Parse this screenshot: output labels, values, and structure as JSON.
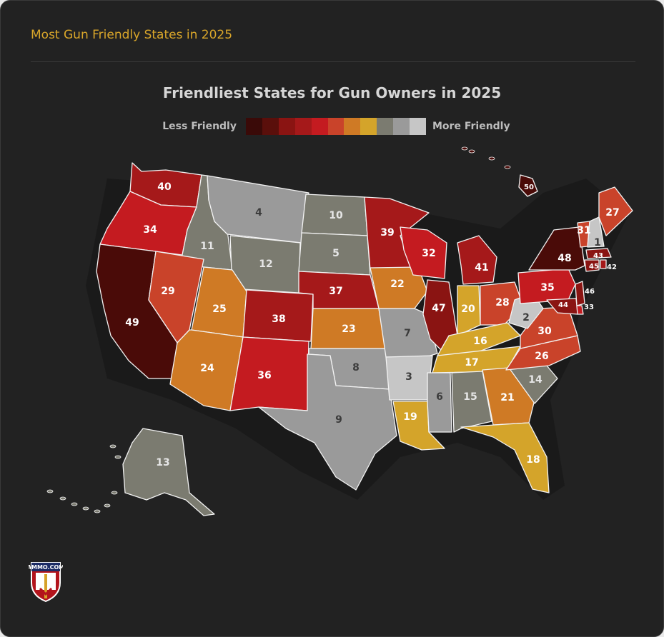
{
  "header": {
    "title": "Most Gun Friendly States in 2025"
  },
  "map": {
    "title": "Friendliest States for Gun Owners in 2025",
    "legend": {
      "less_label": "Less Friendly",
      "more_label": "More Friendly",
      "scale_colors": [
        "#3a0a08",
        "#5a0f0b",
        "#8a1412",
        "#a5191a",
        "#c41b20",
        "#c9432a",
        "#cf7a25",
        "#d4a42a",
        "#7b7b70",
        "#9a9a9a",
        "#c6c6c6"
      ]
    },
    "states": [
      {
        "abbr": "WA",
        "rank": 40,
        "color": "#a5191a"
      },
      {
        "abbr": "OR",
        "rank": 34,
        "color": "#c41b20"
      },
      {
        "abbr": "CA",
        "rank": 49,
        "color": "#4a0b08"
      },
      {
        "abbr": "ID",
        "rank": 11,
        "color": "#7b7b70"
      },
      {
        "abbr": "NV",
        "rank": 29,
        "color": "#c9432a"
      },
      {
        "abbr": "MT",
        "rank": 4,
        "color": "#9a9a9a"
      },
      {
        "abbr": "WY",
        "rank": 12,
        "color": "#7b7b70"
      },
      {
        "abbr": "UT",
        "rank": 25,
        "color": "#cf7a25"
      },
      {
        "abbr": "AZ",
        "rank": 24,
        "color": "#cf7a25"
      },
      {
        "abbr": "CO",
        "rank": 38,
        "color": "#a5191a"
      },
      {
        "abbr": "NM",
        "rank": 36,
        "color": "#c41b20"
      },
      {
        "abbr": "ND",
        "rank": 10,
        "color": "#7b7b70"
      },
      {
        "abbr": "SD",
        "rank": 5,
        "color": "#7b7b70"
      },
      {
        "abbr": "NE",
        "rank": 37,
        "color": "#a5191a"
      },
      {
        "abbr": "KS",
        "rank": 23,
        "color": "#cf7a25"
      },
      {
        "abbr": "OK",
        "rank": 8,
        "color": "#9a9a9a"
      },
      {
        "abbr": "TX",
        "rank": 9,
        "color": "#9a9a9a"
      },
      {
        "abbr": "MN",
        "rank": 39,
        "color": "#a5191a"
      },
      {
        "abbr": "IA",
        "rank": 22,
        "color": "#cf7a25"
      },
      {
        "abbr": "MO",
        "rank": 7,
        "color": "#9a9a9a"
      },
      {
        "abbr": "AR",
        "rank": 3,
        "color": "#c6c6c6"
      },
      {
        "abbr": "LA",
        "rank": 19,
        "color": "#d4a42a"
      },
      {
        "abbr": "WI",
        "rank": 32,
        "color": "#c41b20"
      },
      {
        "abbr": "IL",
        "rank": 47,
        "color": "#8a1412"
      },
      {
        "abbr": "MI",
        "rank": 41,
        "color": "#a5191a"
      },
      {
        "abbr": "IN",
        "rank": 20,
        "color": "#d4a42a"
      },
      {
        "abbr": "OH",
        "rank": 28,
        "color": "#c9432a"
      },
      {
        "abbr": "KY",
        "rank": 16,
        "color": "#d4a42a"
      },
      {
        "abbr": "TN",
        "rank": 17,
        "color": "#d4a42a"
      },
      {
        "abbr": "MS",
        "rank": 6,
        "color": "#9a9a9a"
      },
      {
        "abbr": "AL",
        "rank": 15,
        "color": "#7b7b70"
      },
      {
        "abbr": "GA",
        "rank": 21,
        "color": "#cf7a25"
      },
      {
        "abbr": "FL",
        "rank": 18,
        "color": "#d4a42a"
      },
      {
        "abbr": "SC",
        "rank": 14,
        "color": "#7b7b70"
      },
      {
        "abbr": "NC",
        "rank": 26,
        "color": "#c9432a"
      },
      {
        "abbr": "VA",
        "rank": 30,
        "color": "#c9432a"
      },
      {
        "abbr": "WV",
        "rank": 2,
        "color": "#c6c6c6"
      },
      {
        "abbr": "PA",
        "rank": 35,
        "color": "#c41b20"
      },
      {
        "abbr": "NY",
        "rank": 48,
        "color": "#4a0b08"
      },
      {
        "abbr": "VT",
        "rank": 31,
        "color": "#c9432a"
      },
      {
        "abbr": "NH",
        "rank": 1,
        "color": "#c6c6c6"
      },
      {
        "abbr": "ME",
        "rank": 27,
        "color": "#c9432a"
      },
      {
        "abbr": "MA",
        "rank": 43,
        "color": "#8a1412"
      },
      {
        "abbr": "CT",
        "rank": 45,
        "color": "#8a1412"
      },
      {
        "abbr": "RI",
        "rank": 42,
        "color": "#a5191a"
      },
      {
        "abbr": "NJ",
        "rank": 46,
        "color": "#8a1412"
      },
      {
        "abbr": "DE",
        "rank": 33,
        "color": "#c41b20"
      },
      {
        "abbr": "MD",
        "rank": 44,
        "color": "#8a1412"
      },
      {
        "abbr": "AK",
        "rank": 13,
        "color": "#7b7b70"
      },
      {
        "abbr": "HI",
        "rank": 50,
        "color": "#4a0b08"
      }
    ]
  },
  "logo": {
    "text": "AMMO.COM"
  }
}
